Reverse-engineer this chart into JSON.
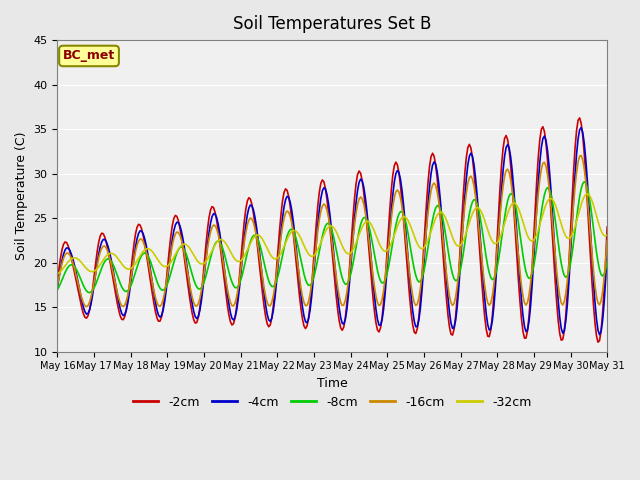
{
  "title": "Soil Temperatures Set B",
  "xlabel": "Time",
  "ylabel": "Soil Temperature (C)",
  "ylim": [
    10,
    45
  ],
  "annotation": "BC_met",
  "colors": {
    "-2cm": "#cc0000",
    "-4cm": "#0000cc",
    "-8cm": "#00cc00",
    "-16cm": "#cc8800",
    "-32cm": "#cccc00"
  },
  "x_tick_labels": [
    "May 16",
    "May 17",
    "May 18",
    "May 19",
    "May 20",
    "May 21",
    "May 22",
    "May 23",
    "May 24",
    "May 25",
    "May 26",
    "May 27",
    "May 28",
    "May 29",
    "May 30",
    "May 31"
  ],
  "background_color": "#e8e8e8",
  "plot_bg_color": "#f0f0f0"
}
